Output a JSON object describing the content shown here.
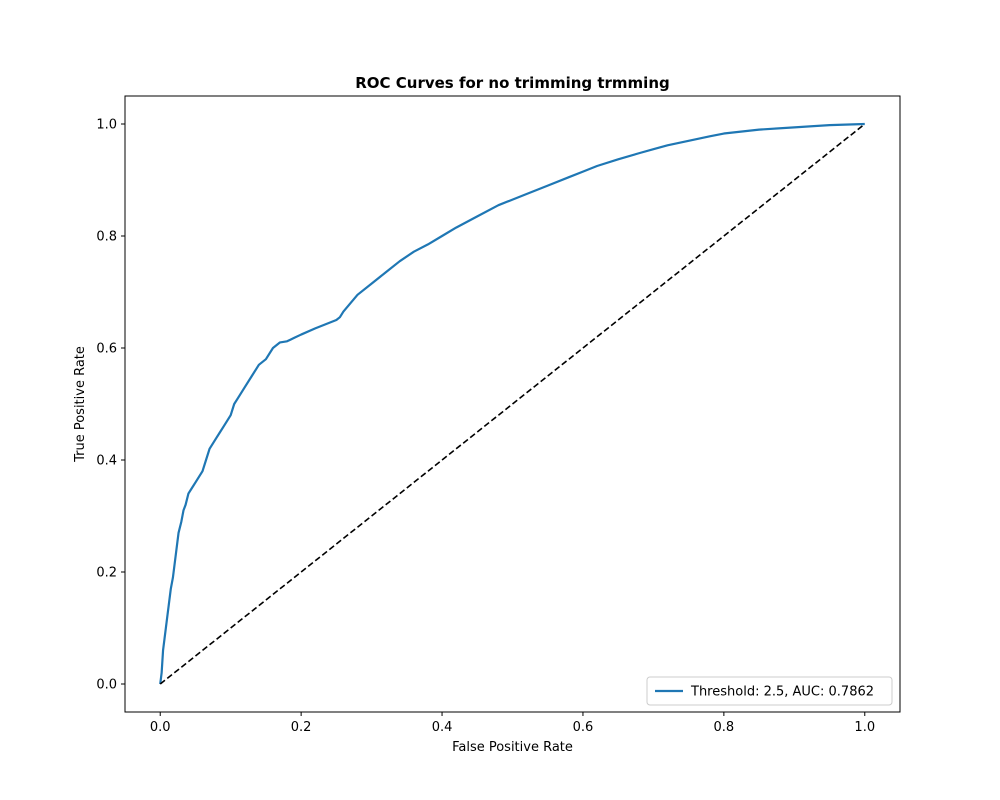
{
  "chart_data": {
    "type": "line",
    "title": "ROC Curves for no trimming trmming",
    "xlabel": "False Positive Rate",
    "ylabel": "True Positive Rate",
    "xlim": [
      -0.05,
      1.05
    ],
    "ylim": [
      -0.05,
      1.05
    ],
    "xticks": [
      0.0,
      0.2,
      0.4,
      0.6,
      0.8,
      1.0
    ],
    "yticks": [
      0.0,
      0.2,
      0.4,
      0.6,
      0.8,
      1.0
    ],
    "grid": false,
    "legend_position": "lower-right",
    "series": [
      {
        "name": "Threshold: 2.5, AUC: 0.7862",
        "color": "#1f77b4",
        "style": "solid",
        "x": [
          0.0,
          0.002,
          0.004,
          0.006,
          0.008,
          0.01,
          0.012,
          0.015,
          0.018,
          0.02,
          0.023,
          0.026,
          0.03,
          0.033,
          0.036,
          0.04,
          0.045,
          0.05,
          0.055,
          0.06,
          0.065,
          0.07,
          0.075,
          0.08,
          0.085,
          0.09,
          0.095,
          0.1,
          0.105,
          0.11,
          0.115,
          0.12,
          0.13,
          0.14,
          0.15,
          0.16,
          0.17,
          0.18,
          0.185,
          0.19,
          0.2,
          0.22,
          0.25,
          0.255,
          0.26,
          0.27,
          0.28,
          0.3,
          0.32,
          0.34,
          0.36,
          0.38,
          0.4,
          0.42,
          0.45,
          0.48,
          0.5,
          0.52,
          0.55,
          0.58,
          0.6,
          0.62,
          0.65,
          0.68,
          0.7,
          0.72,
          0.75,
          0.78,
          0.8,
          0.85,
          0.9,
          0.95,
          1.0
        ],
        "y": [
          0.0,
          0.02,
          0.06,
          0.08,
          0.1,
          0.12,
          0.14,
          0.17,
          0.19,
          0.21,
          0.24,
          0.27,
          0.29,
          0.31,
          0.32,
          0.34,
          0.35,
          0.36,
          0.37,
          0.38,
          0.4,
          0.42,
          0.43,
          0.44,
          0.45,
          0.46,
          0.47,
          0.48,
          0.5,
          0.51,
          0.52,
          0.53,
          0.55,
          0.57,
          0.58,
          0.6,
          0.61,
          0.612,
          0.615,
          0.618,
          0.624,
          0.635,
          0.65,
          0.655,
          0.665,
          0.68,
          0.695,
          0.715,
          0.735,
          0.755,
          0.772,
          0.785,
          0.8,
          0.815,
          0.835,
          0.855,
          0.865,
          0.875,
          0.89,
          0.905,
          0.915,
          0.925,
          0.937,
          0.948,
          0.955,
          0.962,
          0.97,
          0.978,
          0.983,
          0.99,
          0.994,
          0.998,
          1.0
        ]
      },
      {
        "name": "",
        "color": "#000000",
        "style": "dashed",
        "x": [
          0.0,
          1.0
        ],
        "y": [
          0.0,
          1.0
        ]
      }
    ]
  }
}
